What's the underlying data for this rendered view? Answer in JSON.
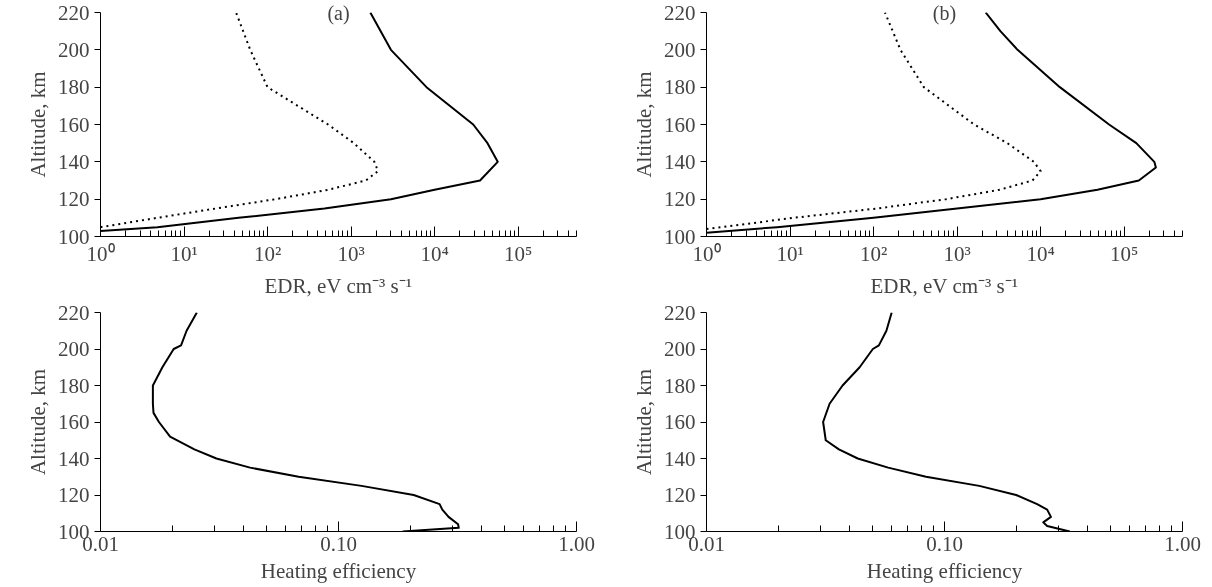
{
  "chart_data": [
    {
      "type": "line",
      "title": "(a)",
      "xlabel": "EDR, eV cm⁻³ s⁻¹",
      "ylabel": "Altitude, km",
      "log": "x",
      "xlim": [
        1,
        500000
      ],
      "ylim": [
        100,
        220
      ],
      "xticks": [
        {
          "value": 1,
          "label": "10⁰"
        },
        {
          "value": 2,
          "label": null
        },
        {
          "value": 3,
          "label": null
        },
        {
          "value": 4,
          "label": null
        },
        {
          "value": 5,
          "label": null
        },
        {
          "value": 6,
          "label": null
        },
        {
          "value": 7,
          "label": null
        },
        {
          "value": 8,
          "label": null
        },
        {
          "value": 9,
          "label": null
        },
        {
          "value": 10,
          "label": "10¹"
        },
        {
          "value": 20,
          "label": null
        },
        {
          "value": 30,
          "label": null
        },
        {
          "value": 40,
          "label": null
        },
        {
          "value": 50,
          "label": null
        },
        {
          "value": 60,
          "label": null
        },
        {
          "value": 70,
          "label": null
        },
        {
          "value": 80,
          "label": null
        },
        {
          "value": 90,
          "label": null
        },
        {
          "value": 100,
          "label": "10²"
        },
        {
          "value": 200,
          "label": null
        },
        {
          "value": 300,
          "label": null
        },
        {
          "value": 400,
          "label": null
        },
        {
          "value": 500,
          "label": null
        },
        {
          "value": 600,
          "label": null
        },
        {
          "value": 700,
          "label": null
        },
        {
          "value": 800,
          "label": null
        },
        {
          "value": 900,
          "label": null
        },
        {
          "value": 1000,
          "label": "10³"
        },
        {
          "value": 2000,
          "label": null
        },
        {
          "value": 3000,
          "label": null
        },
        {
          "value": 4000,
          "label": null
        },
        {
          "value": 5000,
          "label": null
        },
        {
          "value": 6000,
          "label": null
        },
        {
          "value": 7000,
          "label": null
        },
        {
          "value": 8000,
          "label": null
        },
        {
          "value": 9000,
          "label": null
        },
        {
          "value": 10000,
          "label": "10⁴"
        },
        {
          "value": 20000,
          "label": null
        },
        {
          "value": 30000,
          "label": null
        },
        {
          "value": 40000,
          "label": null
        },
        {
          "value": 50000,
          "label": null
        },
        {
          "value": 60000,
          "label": null
        },
        {
          "value": 70000,
          "label": null
        },
        {
          "value": 80000,
          "label": null
        },
        {
          "value": 90000,
          "label": null
        },
        {
          "value": 100000,
          "label": "10⁵"
        },
        {
          "value": 200000,
          "label": null
        },
        {
          "value": 300000,
          "label": null
        },
        {
          "value": 400000,
          "label": null
        },
        {
          "value": 500000,
          "label": null
        }
      ],
      "yticks": [
        100,
        120,
        140,
        160,
        180,
        200,
        220
      ],
      "series": [
        {
          "color": "#000000",
          "line_style": "solid",
          "x": [
            1,
            4.8,
            45,
            480,
            3000,
            10000,
            35000,
            57000,
            43000,
            29000,
            8000,
            3000,
            1700
          ],
          "values": [
            103,
            105,
            110,
            115,
            120,
            125,
            130,
            140,
            150,
            160,
            180,
            200,
            220
          ]
        },
        {
          "color": "#000000",
          "line_style": "dotted",
          "x": [
            1,
            4.8,
            24,
            125,
            530,
            1500,
            2100,
            1900,
            1080,
            530,
            230,
            100,
            62,
            42
          ],
          "values": [
            105,
            110,
            115,
            120,
            125,
            130,
            135,
            140,
            150,
            160,
            170,
            180,
            200,
            220
          ]
        }
      ]
    },
    {
      "type": "line",
      "title": "(b)",
      "xlabel": "EDR, eV cm⁻³ s⁻¹",
      "ylabel": "Altitude, km",
      "log": "x",
      "xlim": [
        1,
        500000
      ],
      "ylim": [
        100,
        220
      ],
      "xticks": [
        {
          "value": 1,
          "label": "10⁰"
        },
        {
          "value": 2,
          "label": null
        },
        {
          "value": 3,
          "label": null
        },
        {
          "value": 4,
          "label": null
        },
        {
          "value": 5,
          "label": null
        },
        {
          "value": 6,
          "label": null
        },
        {
          "value": 7,
          "label": null
        },
        {
          "value": 8,
          "label": null
        },
        {
          "value": 9,
          "label": null
        },
        {
          "value": 10,
          "label": "10¹"
        },
        {
          "value": 20,
          "label": null
        },
        {
          "value": 30,
          "label": null
        },
        {
          "value": 40,
          "label": null
        },
        {
          "value": 50,
          "label": null
        },
        {
          "value": 60,
          "label": null
        },
        {
          "value": 70,
          "label": null
        },
        {
          "value": 80,
          "label": null
        },
        {
          "value": 90,
          "label": null
        },
        {
          "value": 100,
          "label": "10²"
        },
        {
          "value": 200,
          "label": null
        },
        {
          "value": 300,
          "label": null
        },
        {
          "value": 400,
          "label": null
        },
        {
          "value": 500,
          "label": null
        },
        {
          "value": 600,
          "label": null
        },
        {
          "value": 700,
          "label": null
        },
        {
          "value": 800,
          "label": null
        },
        {
          "value": 900,
          "label": null
        },
        {
          "value": 1000,
          "label": "10³"
        },
        {
          "value": 2000,
          "label": null
        },
        {
          "value": 3000,
          "label": null
        },
        {
          "value": 4000,
          "label": null
        },
        {
          "value": 5000,
          "label": null
        },
        {
          "value": 6000,
          "label": null
        },
        {
          "value": 7000,
          "label": null
        },
        {
          "value": 8000,
          "label": null
        },
        {
          "value": 9000,
          "label": null
        },
        {
          "value": 10000,
          "label": "10⁴"
        },
        {
          "value": 20000,
          "label": null
        },
        {
          "value": 30000,
          "label": null
        },
        {
          "value": 40000,
          "label": null
        },
        {
          "value": 50000,
          "label": null
        },
        {
          "value": 60000,
          "label": null
        },
        {
          "value": 70000,
          "label": null
        },
        {
          "value": 80000,
          "label": null
        },
        {
          "value": 90000,
          "label": null
        },
        {
          "value": 100000,
          "label": "10⁵"
        },
        {
          "value": 200000,
          "label": null
        },
        {
          "value": 300000,
          "label": null
        },
        {
          "value": 400000,
          "label": null
        },
        {
          "value": 500000,
          "label": null
        }
      ],
      "yticks": [
        100,
        120,
        140,
        160,
        180,
        200,
        220
      ],
      "series": [
        {
          "color": "#000000",
          "line_style": "solid",
          "x": [
            1,
            7,
            100,
            1000,
            10000,
            48000,
            150000,
            240000,
            230000,
            140000,
            66000,
            17000,
            5300,
            3300,
            2200
          ],
          "values": [
            102,
            105,
            110,
            115,
            120,
            125,
            130,
            137,
            140,
            150,
            160,
            180,
            200,
            210,
            220
          ]
        },
        {
          "color": "#000000",
          "line_style": "dotted",
          "x": [
            1,
            1.5,
            11,
            110,
            740,
            3200,
            8000,
            10000,
            8300,
            4000,
            1600,
            400,
            210,
            137
          ],
          "values": [
            104,
            105,
            110,
            115,
            120,
            125,
            130,
            135,
            140,
            150,
            160,
            180,
            200,
            220
          ]
        }
      ]
    },
    {
      "type": "line",
      "xlabel": "Heating efficiency",
      "ylabel": "Altitude, km",
      "log": "x",
      "xlim": [
        0.01,
        1
      ],
      "ylim": [
        100,
        220
      ],
      "xticks": [
        {
          "value": 0.01,
          "label": "0.01"
        },
        {
          "value": 0.02,
          "label": null
        },
        {
          "value": 0.03,
          "label": null
        },
        {
          "value": 0.04,
          "label": null
        },
        {
          "value": 0.05,
          "label": null
        },
        {
          "value": 0.06,
          "label": null
        },
        {
          "value": 0.07,
          "label": null
        },
        {
          "value": 0.08,
          "label": null
        },
        {
          "value": 0.09,
          "label": null
        },
        {
          "value": 0.1,
          "label": "0.10"
        },
        {
          "value": 0.2,
          "label": null
        },
        {
          "value": 0.3,
          "label": null
        },
        {
          "value": 0.4,
          "label": null
        },
        {
          "value": 0.5,
          "label": null
        },
        {
          "value": 0.6,
          "label": null
        },
        {
          "value": 0.7,
          "label": null
        },
        {
          "value": 0.8,
          "label": null
        },
        {
          "value": 0.9,
          "label": null
        },
        {
          "value": 1,
          "label": "1.00"
        }
      ],
      "yticks": [
        100,
        120,
        140,
        160,
        180,
        200,
        220
      ],
      "series": [
        {
          "color": "#000000",
          "line_style": "solid",
          "x": [
            0.186,
            0.32,
            0.318,
            0.29,
            0.273,
            0.266,
            0.207,
            0.125,
            0.068,
            0.0425,
            0.0307,
            0.0248,
            0.0196,
            0.0176,
            0.0167,
            0.0166,
            0.0166,
            0.0182,
            0.0203,
            0.0218,
            0.023,
            0.0254
          ],
          "values": [
            100,
            102,
            104,
            108,
            112,
            115,
            120,
            125,
            130,
            135,
            140,
            145,
            152,
            160,
            165,
            170,
            180,
            190,
            200,
            202,
            210,
            220
          ]
        }
      ]
    },
    {
      "type": "line",
      "xlabel": "Heating efficiency",
      "ylabel": "Altitude, km",
      "log": "x",
      "xlim": [
        0.01,
        1
      ],
      "ylim": [
        100,
        220
      ],
      "xticks": [
        {
          "value": 0.01,
          "label": "0.01"
        },
        {
          "value": 0.02,
          "label": null
        },
        {
          "value": 0.03,
          "label": null
        },
        {
          "value": 0.04,
          "label": null
        },
        {
          "value": 0.05,
          "label": null
        },
        {
          "value": 0.06,
          "label": null
        },
        {
          "value": 0.07,
          "label": null
        },
        {
          "value": 0.08,
          "label": null
        },
        {
          "value": 0.09,
          "label": null
        },
        {
          "value": 0.1,
          "label": "0.10"
        },
        {
          "value": 0.2,
          "label": null
        },
        {
          "value": 0.3,
          "label": null
        },
        {
          "value": 0.4,
          "label": null
        },
        {
          "value": 0.5,
          "label": null
        },
        {
          "value": 0.6,
          "label": null
        },
        {
          "value": 0.7,
          "label": null
        },
        {
          "value": 0.8,
          "label": null
        },
        {
          "value": 0.9,
          "label": null
        },
        {
          "value": 1,
          "label": "1.00"
        }
      ],
      "yticks": [
        100,
        120,
        140,
        160,
        180,
        200,
        220
      ],
      "series": [
        {
          "color": "#000000",
          "line_style": "solid",
          "x": [
            0.336,
            0.27,
            0.26,
            0.28,
            0.27,
            0.245,
            0.2,
            0.14,
            0.0836,
            0.058,
            0.0432,
            0.036,
            0.0317,
            0.0309,
            0.0329,
            0.0373,
            0.044,
            0.05,
            0.053,
            0.057,
            0.06
          ],
          "values": [
            100,
            103,
            105,
            108,
            112,
            115,
            120,
            125,
            130,
            135,
            140,
            145,
            150,
            160,
            170,
            180,
            190,
            200,
            202,
            210,
            220
          ]
        }
      ]
    }
  ]
}
